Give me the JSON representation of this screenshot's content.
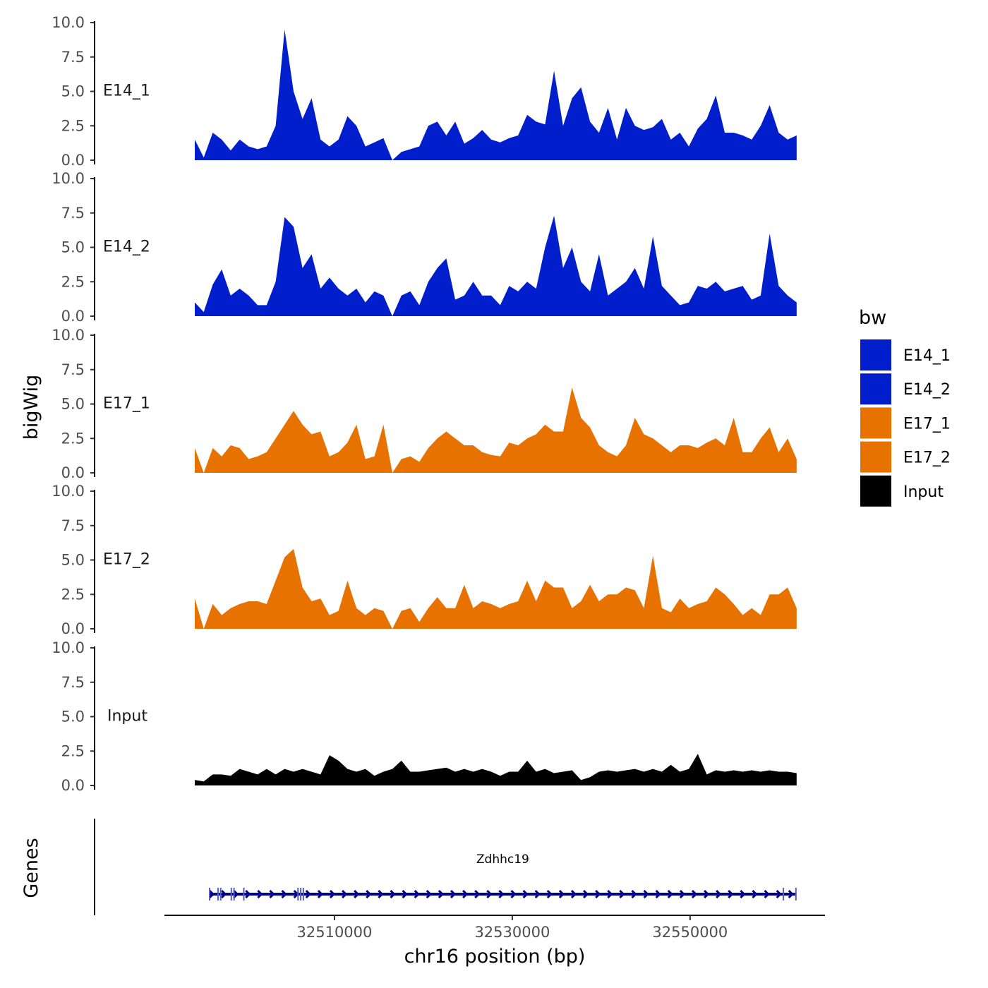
{
  "chart_data": {
    "type": "area",
    "title": "",
    "xlabel": "chr16 position (bp)",
    "ylabel": "bigWig",
    "gene_panel_label": "Genes",
    "xlim": [
      32490873,
      32565175
    ],
    "x_ticks": [
      32510000,
      32530000,
      32550000
    ],
    "x_tick_labels": [
      "32510000",
      "32530000",
      "32550000"
    ],
    "ylim": [
      0,
      10
    ],
    "y_ticks": [
      0,
      2.5,
      5,
      7.5,
      10
    ],
    "y_tick_labels": [
      "0.0",
      "2.5",
      "5.0",
      "7.5",
      "10.0"
    ],
    "bin_start": 32494286,
    "bin_step": 1000,
    "series": [
      {
        "name": "E14_1",
        "color": "#001ECC",
        "values": [
          1.5,
          0.2,
          2.0,
          1.5,
          0.7,
          1.5,
          1.0,
          0.8,
          1.0,
          2.5,
          9.5,
          5.0,
          3.0,
          4.5,
          1.5,
          1.0,
          1.5,
          3.2,
          2.5,
          1.0,
          1.3,
          1.6,
          0,
          0.6,
          0.8,
          1.0,
          2.5,
          2.8,
          1.8,
          2.8,
          1.2,
          1.6,
          2.2,
          1.5,
          1.3,
          1.6,
          1.8,
          3.3,
          2.8,
          2.6,
          6.5,
          2.5,
          4.5,
          5.3,
          2.8,
          2.0,
          3.8,
          1.5,
          3.8,
          2.5,
          2.2,
          2.4,
          3.0,
          1.5,
          2.0,
          1.0,
          2.3,
          3.0,
          4.7,
          2.0,
          2.0,
          1.8,
          1.5,
          2.5,
          4.0,
          2.0,
          1.5,
          1.8
        ]
      },
      {
        "name": "E14_2",
        "color": "#001ECC",
        "values": [
          1.0,
          0.3,
          2.3,
          3.4,
          1.5,
          2.0,
          1.5,
          0.8,
          0.8,
          2.5,
          7.2,
          6.5,
          3.5,
          4.5,
          2.0,
          2.8,
          2.0,
          1.5,
          2.0,
          1.0,
          1.8,
          1.5,
          0,
          1.5,
          1.8,
          0.8,
          2.5,
          3.5,
          4.2,
          1.2,
          1.5,
          2.5,
          1.5,
          1.5,
          0.8,
          2.2,
          1.8,
          2.5,
          2.0,
          5.0,
          7.3,
          3.5,
          5.0,
          2.5,
          1.8,
          4.5,
          1.5,
          2.0,
          2.5,
          3.5,
          2.0,
          5.8,
          2.2,
          1.5,
          0.8,
          1.0,
          2.2,
          2.0,
          2.5,
          1.8,
          2.0,
          2.2,
          1.2,
          1.5,
          6.0,
          2.2,
          1.5,
          1.0
        ]
      },
      {
        "name": "E17_1",
        "color": "#E87200",
        "values": [
          1.8,
          0,
          1.8,
          1.2,
          2.0,
          1.8,
          1.0,
          1.2,
          1.5,
          2.5,
          3.5,
          4.5,
          3.5,
          2.8,
          3.0,
          1.2,
          1.5,
          2.2,
          3.5,
          1.0,
          1.2,
          3.5,
          0,
          1.0,
          1.2,
          0.8,
          1.8,
          2.5,
          3.0,
          2.5,
          2.0,
          2.0,
          1.5,
          1.3,
          1.2,
          2.2,
          2.0,
          2.5,
          2.8,
          3.5,
          3.0,
          3.0,
          6.2,
          4.0,
          3.3,
          2.0,
          1.5,
          1.2,
          2.0,
          4.0,
          2.8,
          2.5,
          2.0,
          1.5,
          2.0,
          2.0,
          1.8,
          2.2,
          2.5,
          2.0,
          4.0,
          1.5,
          1.5,
          2.5,
          3.3,
          1.5,
          2.5,
          1.0
        ]
      },
      {
        "name": "E17_2",
        "color": "#E87200",
        "values": [
          2.2,
          0,
          1.8,
          1.0,
          1.5,
          1.8,
          2.0,
          2.0,
          1.8,
          3.5,
          5.2,
          5.8,
          3.0,
          2.0,
          2.2,
          1.0,
          1.3,
          3.5,
          1.5,
          1.0,
          1.5,
          1.3,
          0,
          1.3,
          1.5,
          0.5,
          1.5,
          2.3,
          1.5,
          1.5,
          3.2,
          1.5,
          2.0,
          1.8,
          1.5,
          1.8,
          2.0,
          3.5,
          2.0,
          3.5,
          3.0,
          3.0,
          1.5,
          2.0,
          3.2,
          2.0,
          2.5,
          2.5,
          3.0,
          2.8,
          1.5,
          5.3,
          1.5,
          1.2,
          2.2,
          1.5,
          1.8,
          2.0,
          3.0,
          2.5,
          1.8,
          1.0,
          1.5,
          1.0,
          2.5,
          2.5,
          3.0,
          1.5
        ]
      },
      {
        "name": "Input",
        "color": "#000000",
        "values": [
          0.4,
          0.3,
          0.8,
          0.8,
          0.7,
          1.2,
          1.0,
          0.8,
          1.2,
          0.8,
          1.2,
          1.0,
          1.2,
          1.0,
          0.8,
          2.2,
          1.8,
          1.2,
          1.0,
          1.2,
          0.7,
          1.0,
          1.2,
          1.8,
          1.0,
          1.0,
          1.1,
          1.2,
          1.3,
          1.0,
          1.2,
          1.0,
          1.2,
          1.0,
          0.7,
          1.0,
          1.0,
          1.8,
          1.0,
          1.2,
          0.9,
          1.0,
          1.1,
          0.4,
          0.6,
          1.0,
          1.1,
          1.0,
          1.1,
          1.2,
          1.0,
          1.2,
          1.0,
          1.5,
          1.0,
          1.2,
          2.3,
          0.8,
          1.1,
          1.0,
          1.1,
          1.0,
          1.1,
          1.0,
          1.1,
          1.0,
          1.0,
          0.9
        ]
      }
    ],
    "legend": {
      "title": "bw",
      "placement": "right",
      "entries": [
        "E14_1",
        "E14_2",
        "E17_1",
        "E17_2",
        "Input"
      ]
    },
    "gene": {
      "name": "Zdhhc19",
      "start": 32495952,
      "end": 32561905,
      "strand": "+",
      "color": "#00008B",
      "exon_marks": [
        32495952,
        32496900,
        32497200,
        32498400,
        32498700,
        32499800,
        32505900,
        32506200,
        32506500,
        32560500,
        32561905
      ]
    }
  }
}
